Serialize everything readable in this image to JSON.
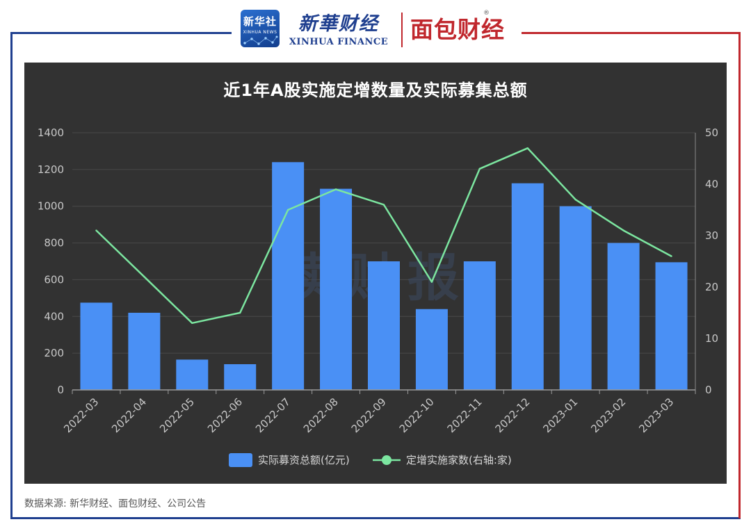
{
  "header": {
    "xinhua_she_cn": "新华社",
    "xinhua_she_en": "XINHUA NEWS",
    "finance_cn": "新華财经",
    "finance_en": "XINHUA FINANCE",
    "mianbao": "面包财经",
    "reg_mark": "®"
  },
  "watermark": "读财报",
  "source": "数据来源: 新华财经、面包财经、公司公告",
  "colors": {
    "bar": "#4a90f5",
    "line": "#7ce6a0",
    "panel": "#323232",
    "frame_left": "#1f3f8f",
    "frame_right": "#c0272d"
  },
  "chart_data": {
    "type": "bar",
    "title": "近1年A股实施定增数量及实际募集总额",
    "categories": [
      "2022-03",
      "2022-04",
      "2022-05",
      "2022-06",
      "2022-07",
      "2022-08",
      "2022-09",
      "2022-10",
      "2022-11",
      "2022-12",
      "2023-01",
      "2023-02",
      "2023-03"
    ],
    "series": [
      {
        "name": "实际募资总额(亿元)",
        "type": "bar",
        "axis": "left",
        "values": [
          475,
          420,
          165,
          140,
          1240,
          1095,
          700,
          440,
          700,
          1125,
          1000,
          800,
          695
        ]
      },
      {
        "name": "定增实施家数(右轴:家)",
        "type": "line",
        "axis": "right",
        "values": [
          31,
          22,
          13,
          15,
          35,
          39,
          36,
          21,
          43,
          47,
          37,
          31,
          26
        ]
      }
    ],
    "y_left": {
      "min": 0,
      "max": 1400,
      "ticks": [
        "0",
        "200",
        "400",
        "600",
        "800",
        "1000",
        "1200",
        "1400"
      ]
    },
    "y_right": {
      "min": 0,
      "max": 50,
      "ticks": [
        "0",
        "10",
        "20",
        "30",
        "40",
        "50"
      ]
    },
    "grid": true,
    "legend": "bottom-center"
  }
}
